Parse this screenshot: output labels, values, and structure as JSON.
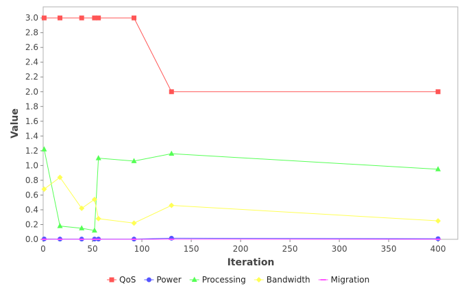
{
  "chart_data": {
    "type": "line",
    "title": "",
    "xlabel": "Iteration",
    "ylabel": "Value",
    "xlim": [
      0,
      420
    ],
    "ylim": [
      0,
      3.15
    ],
    "xticks": [
      0,
      50,
      100,
      150,
      200,
      250,
      300,
      350,
      400
    ],
    "yticks": [
      0.0,
      0.2,
      0.4,
      0.6,
      0.8,
      1.0,
      1.2,
      1.4,
      1.6,
      1.8,
      2.0,
      2.2,
      2.4,
      2.6,
      2.8,
      3.0
    ],
    "grid": false,
    "legend_position": "bottom",
    "series": [
      {
        "name": "QoS",
        "color": "#ff5555",
        "marker": "square",
        "x": [
          1,
          17,
          39,
          52,
          56,
          92,
          130,
          400
        ],
        "y": [
          3.0,
          3.0,
          3.0,
          3.0,
          3.0,
          3.0,
          2.0,
          2.0
        ]
      },
      {
        "name": "Power",
        "color": "#5555ff",
        "marker": "circle",
        "x": [
          1,
          17,
          39,
          52,
          56,
          92,
          130,
          400
        ],
        "y": [
          0.005,
          0.003,
          0.003,
          0.003,
          0.003,
          0.003,
          0.015,
          0.008
        ]
      },
      {
        "name": "Processing",
        "color": "#55ff55",
        "marker": "triangle",
        "x": [
          1,
          17,
          39,
          52,
          56,
          92,
          130,
          400
        ],
        "y": [
          1.22,
          0.18,
          0.15,
          0.12,
          1.1,
          1.06,
          1.16,
          0.95
        ]
      },
      {
        "name": "Bandwidth",
        "color": "#ffff55",
        "marker": "diamond",
        "x": [
          1,
          17,
          39,
          52,
          56,
          92,
          130,
          400
        ],
        "y": [
          0.68,
          0.84,
          0.42,
          0.54,
          0.28,
          0.22,
          0.46,
          0.25
        ]
      },
      {
        "name": "Migration",
        "color": "#ff55ff",
        "marker": "dash",
        "x": [
          1,
          17,
          39,
          52,
          56,
          92,
          130,
          400
        ],
        "y": [
          0.0,
          0.0,
          0.0,
          0.0,
          0.0,
          0.0,
          0.0,
          0.0
        ]
      }
    ]
  }
}
